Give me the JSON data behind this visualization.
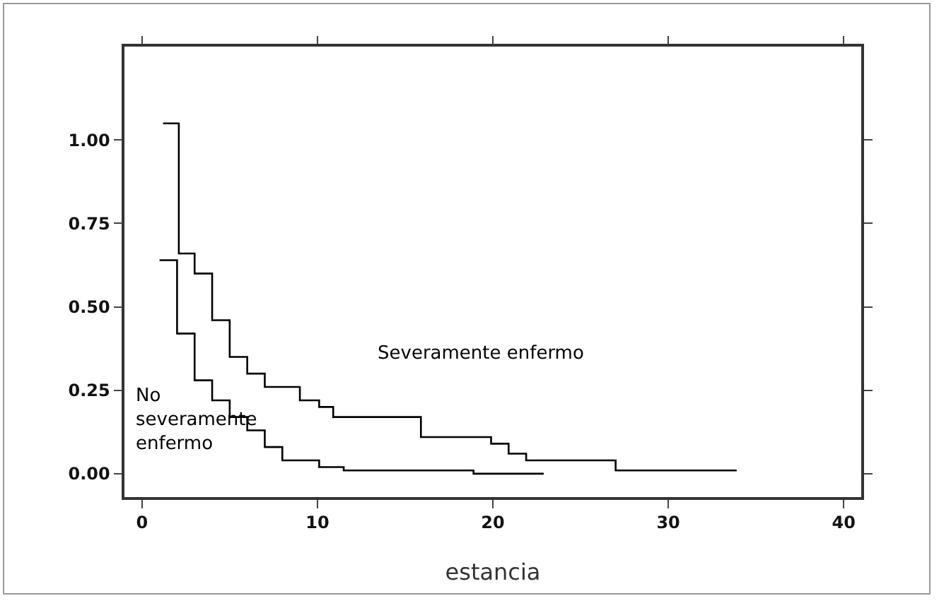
{
  "chart_data": {
    "type": "step",
    "xlabel": "estancia",
    "xlim": [
      -1,
      41
    ],
    "xticks": [
      0,
      10,
      20,
      30,
      40
    ],
    "ylim": [
      -0.07,
      1.28
    ],
    "yticks": [
      {
        "value": 0,
        "label": "0.00"
      },
      {
        "value": 0.25,
        "label": "0.25"
      },
      {
        "value": 0.5,
        "label": "0.50"
      },
      {
        "value": 0.75,
        "label": "0.75"
      },
      {
        "value": 1,
        "label": "1.00"
      }
    ],
    "grid": false,
    "legend": false,
    "series": [
      {
        "name": "Severamente enfermo",
        "color": "#000000",
        "x": [
          1.2,
          2.1,
          3,
          4,
          5,
          6,
          7,
          9,
          10.1,
          10.9,
          15.9,
          19.9,
          20.9,
          21.9,
          27,
          33.9
        ],
        "values": [
          1.05,
          0.66,
          0.6,
          0.46,
          0.35,
          0.3,
          0.26,
          0.22,
          0.2,
          0.17,
          0.11,
          0.09,
          0.06,
          0.04,
          0.01,
          0.01
        ]
      },
      {
        "name": "No severamente enfermo",
        "color": "#000000",
        "x": [
          1,
          2,
          3,
          4,
          5,
          6,
          7,
          8,
          10.1,
          11.5,
          18.9,
          22.9
        ],
        "values": [
          0.64,
          0.42,
          0.28,
          0.22,
          0.17,
          0.13,
          0.08,
          0.04,
          0.02,
          0.01,
          0,
          0
        ]
      }
    ]
  }
}
